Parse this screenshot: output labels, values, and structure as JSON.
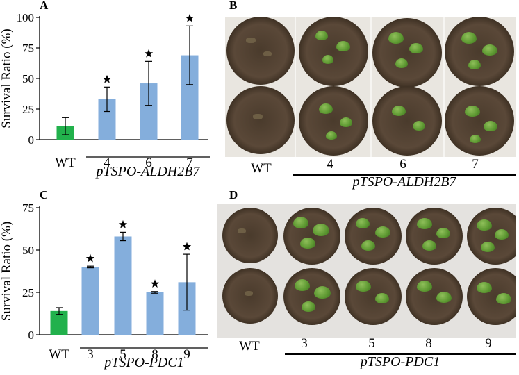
{
  "panels": {
    "A": "A",
    "B": "B",
    "C": "C",
    "D": "D"
  },
  "colors": {
    "wt_bar": "#22b14c",
    "line_bar": "#84aedc",
    "star": "#000000"
  },
  "chart_data": [
    {
      "type": "bar",
      "panel": "A",
      "ylabel": "Survival Ratio (%)",
      "ylim": [
        0,
        100
      ],
      "yticks": [
        0,
        25,
        50,
        75,
        100
      ],
      "categories": [
        "WT",
        "4",
        "6",
        "7"
      ],
      "values": [
        11,
        33,
        46,
        69
      ],
      "errors": [
        7,
        10,
        18,
        24
      ],
      "significant": [
        false,
        true,
        true,
        true
      ],
      "group_label": "pTSPO-ALDH2B7"
    },
    {
      "type": "bar",
      "panel": "C",
      "ylabel": "Survival Ratio (%)",
      "ylim": [
        0,
        75
      ],
      "yticks": [
        0,
        25,
        50,
        75
      ],
      "categories": [
        "WT",
        "3",
        "5",
        "8",
        "9"
      ],
      "values": [
        14,
        40,
        58,
        25,
        31
      ],
      "errors": [
        2,
        0.5,
        2.5,
        0.5,
        16.5
      ],
      "significant": [
        false,
        true,
        true,
        true,
        true
      ],
      "group_label": "pTSPO-PDC1"
    }
  ],
  "photo_B": {
    "labels": [
      "WT",
      "4",
      "6",
      "7"
    ],
    "group_label": "pTSPO-ALDH2B7"
  },
  "photo_D": {
    "labels": [
      "WT",
      "3",
      "5",
      "8",
      "9"
    ],
    "group_label": "pTSPO-PDC1"
  }
}
